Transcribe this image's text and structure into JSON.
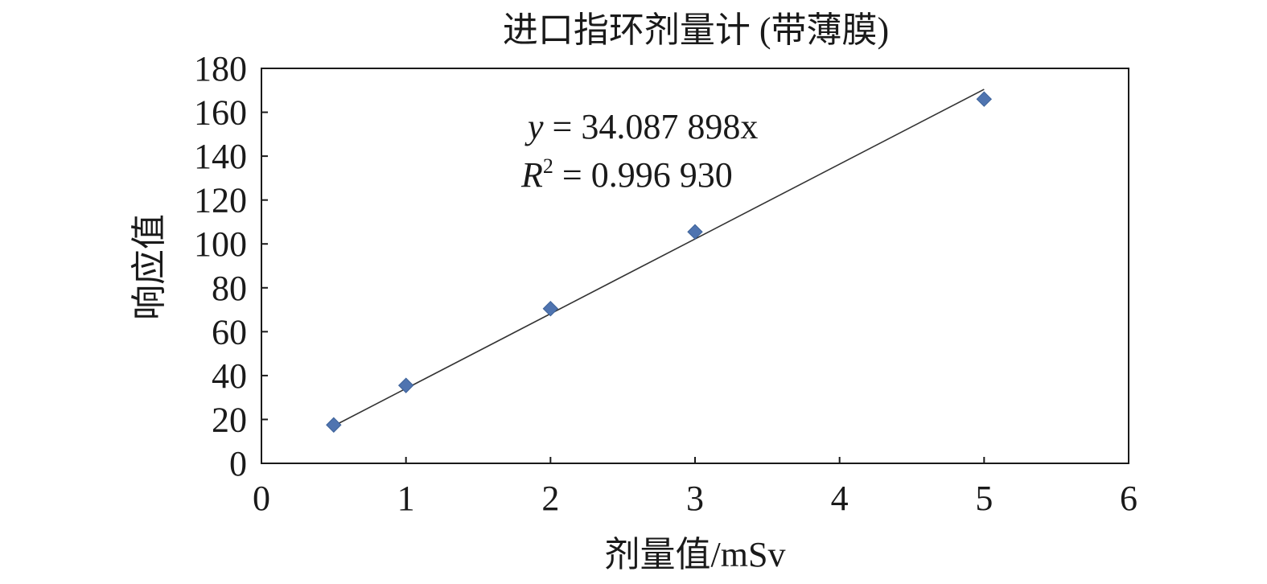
{
  "chart_data": {
    "type": "scatter",
    "title": "进口指环剂量计 (带薄膜)",
    "xlabel": "剂量值/mSv",
    "ylabel": "响应值",
    "xlim": [
      0,
      6
    ],
    "ylim": [
      0,
      180
    ],
    "x_ticks": [
      "0",
      "1",
      "2",
      "3",
      "4",
      "5",
      "6"
    ],
    "y_ticks": [
      "0",
      "20",
      "40",
      "60",
      "80",
      "100",
      "120",
      "140",
      "160",
      "180"
    ],
    "series": [
      {
        "marker": "diamond",
        "color": "#4f74b0",
        "points": [
          {
            "x": 0.5,
            "y": 17.5
          },
          {
            "x": 1,
            "y": 35.5
          },
          {
            "x": 2,
            "y": 70.5
          },
          {
            "x": 3,
            "y": 105.5
          },
          {
            "x": 5,
            "y": 166
          }
        ]
      }
    ],
    "trendline": {
      "type": "linear-through-origin",
      "slope": 34.087898,
      "x_range": [
        0.5,
        5
      ],
      "color": "#333333"
    },
    "annotation": {
      "equation_var": "y",
      "equation_rest": " = 34.087 898x",
      "r2_var": "R",
      "r2_sup": "2",
      "r2_rest": " = 0.996 930"
    },
    "grid": false,
    "legend": "none"
  }
}
